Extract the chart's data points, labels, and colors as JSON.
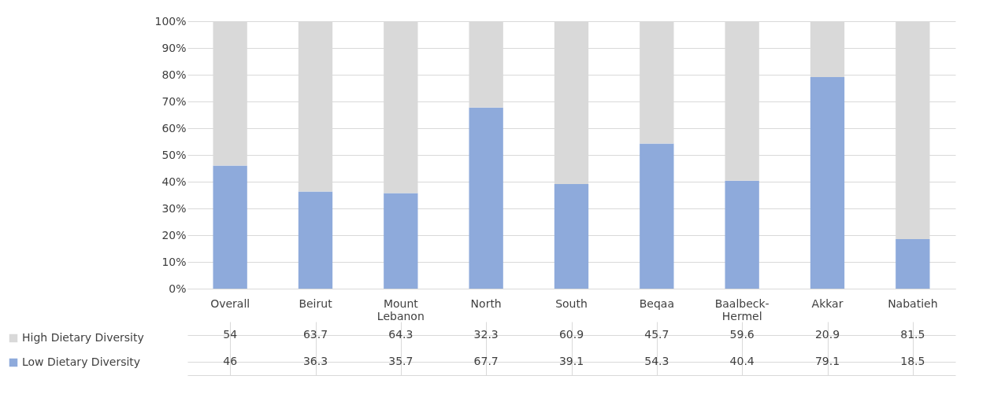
{
  "chart_data": {
    "type": "bar",
    "stacked": true,
    "data_labels": true,
    "legend": "bottom",
    "grid": "y",
    "categories": [
      "Overall",
      "Beirut",
      "Mount Lebanon",
      "North",
      "South",
      "Beqaa",
      "Baalbeck-Hermel",
      "Akkar",
      "Nabatieh"
    ],
    "series": [
      {
        "name": "Low Dietary Diversity",
        "color": "#8eaadb",
        "values": [
          46,
          36.3,
          35.7,
          67.7,
          39.1,
          54.3,
          40.4,
          79.1,
          18.5
        ]
      },
      {
        "name": "High Dietary Diversity",
        "color": "#d9d9d9",
        "values": [
          54,
          63.7,
          64.3,
          32.3,
          60.9,
          45.7,
          59.6,
          20.9,
          81.5
        ]
      }
    ],
    "ylim": [
      0,
      100
    ],
    "yticks": [
      {
        "value": 0,
        "label": "0%"
      },
      {
        "value": 10,
        "label": "10%"
      },
      {
        "value": 20,
        "label": "20%"
      },
      {
        "value": 30,
        "label": "30%"
      },
      {
        "value": 40,
        "label": "40%"
      },
      {
        "value": 50,
        "label": "50%"
      },
      {
        "value": 60,
        "label": "60%"
      },
      {
        "value": 70,
        "label": "70%"
      },
      {
        "value": 80,
        "label": "80%"
      },
      {
        "value": 90,
        "label": "90%"
      },
      {
        "value": 100,
        "label": "100%"
      }
    ]
  }
}
